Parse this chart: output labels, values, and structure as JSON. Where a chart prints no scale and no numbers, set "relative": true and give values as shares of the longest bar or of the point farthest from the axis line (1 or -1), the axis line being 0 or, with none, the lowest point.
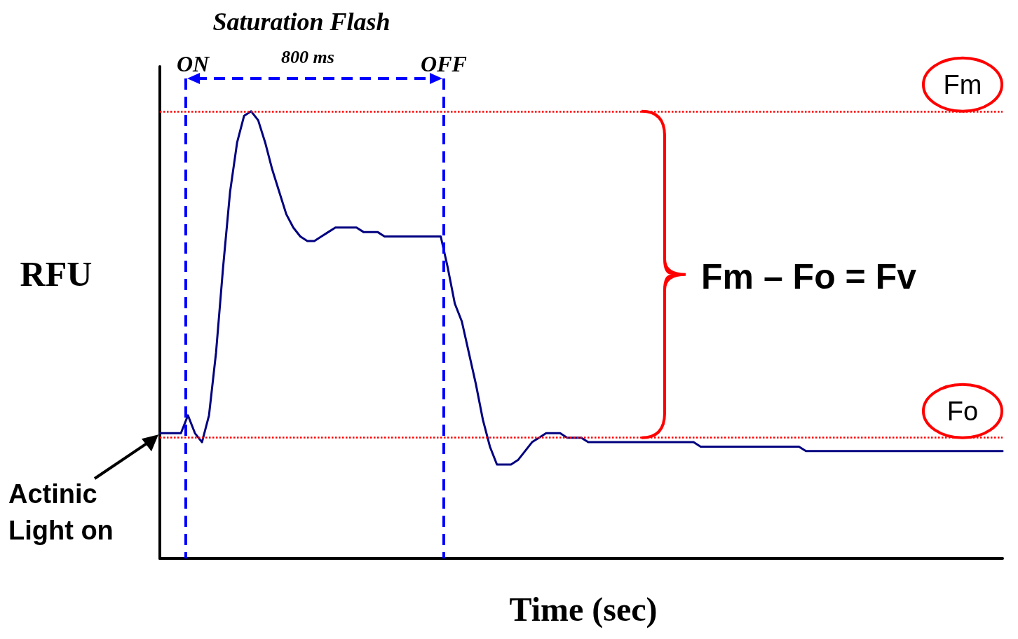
{
  "chart_data": {
    "type": "line",
    "relative": true,
    "title": "Saturation Flash",
    "xlabel": "Time (sec)",
    "ylabel": "RFU",
    "categories": [
      null,
      null,
      null,
      null,
      null,
      null,
      null,
      null,
      null,
      null,
      null,
      null,
      null,
      null,
      null,
      null,
      null,
      null,
      null,
      null,
      null,
      null,
      null,
      null,
      null,
      null,
      null,
      null,
      null,
      null,
      null,
      null,
      null,
      null,
      null,
      null,
      null,
      null,
      null,
      null,
      null,
      null,
      null,
      null,
      null,
      null,
      null,
      null,
      null,
      null,
      null,
      null,
      null,
      null,
      null,
      null,
      null,
      null,
      null,
      null,
      null,
      null,
      null,
      null,
      null,
      null,
      null,
      null,
      null,
      null,
      null,
      null,
      null,
      null,
      null,
      null,
      null,
      null,
      null,
      null,
      null,
      null,
      null,
      null,
      null,
      null,
      null,
      null,
      null,
      null,
      null,
      null,
      null,
      null,
      null,
      null,
      null,
      null,
      null,
      null,
      null,
      null,
      null,
      null,
      null,
      null,
      null,
      null,
      null,
      null,
      null,
      null,
      null,
      null,
      null,
      null,
      null,
      null,
      null,
      null,
      null
    ],
    "series": [
      {
        "color": "#000080",
        "values": [
          0.28,
          0.28,
          0.28,
          0.28,
          0.32,
          0.28,
          0.26,
          0.32,
          0.46,
          0.65,
          0.82,
          0.93,
          0.99,
          1,
          0.98,
          0.93,
          0.87,
          0.82,
          0.77,
          0.74,
          0.72,
          0.71,
          0.71,
          0.72,
          0.73,
          0.74,
          0.74,
          0.74,
          0.74,
          0.73,
          0.73,
          0.73,
          0.72,
          0.72,
          0.72,
          0.72,
          0.72,
          0.72,
          0.72,
          0.72,
          0.72,
          0.65,
          0.57,
          0.53,
          0.46,
          0.39,
          0.31,
          0.25,
          0.21,
          0.21,
          0.21,
          0.22,
          0.24,
          0.26,
          0.27,
          0.28,
          0.28,
          0.28,
          0.27,
          0.27,
          0.27,
          0.26,
          0.26,
          0.26,
          0.26,
          0.26,
          0.26,
          0.26,
          0.26,
          0.26,
          0.26,
          0.26,
          0.26,
          0.26,
          0.26,
          0.26,
          0.26,
          0.25,
          0.25,
          0.25,
          0.25,
          0.25,
          0.25,
          0.25,
          0.25,
          0.25,
          0.25,
          0.25,
          0.25,
          0.25,
          0.25,
          0.25,
          0.24,
          0.24,
          0.24,
          0.24,
          0.24,
          0.24,
          0.24,
          0.24,
          0.24,
          0.24,
          0.24,
          0.24,
          0.24,
          0.24,
          0.24,
          0.24,
          0.24,
          0.24,
          0.24,
          0.24,
          0.24,
          0.24,
          0.24,
          0.24,
          0.24,
          0.24,
          0.24,
          0.24,
          0.24
        ]
      }
    ],
    "ref_lines": [
      {
        "axis": "y",
        "value": 1,
        "label": "Fm",
        "color": "#ff0000",
        "line_style": "dotted"
      },
      {
        "axis": "y",
        "value": 0.27,
        "label": "Fo",
        "color": "#ff0000",
        "line_style": "dotted"
      }
    ],
    "annotations": [
      "ON",
      "OFF",
      "800 ms",
      "Actinic Light on",
      "Fm – Fo = Fv"
    ],
    "grid": false,
    "marker": "none",
    "line_style": "solid"
  }
}
